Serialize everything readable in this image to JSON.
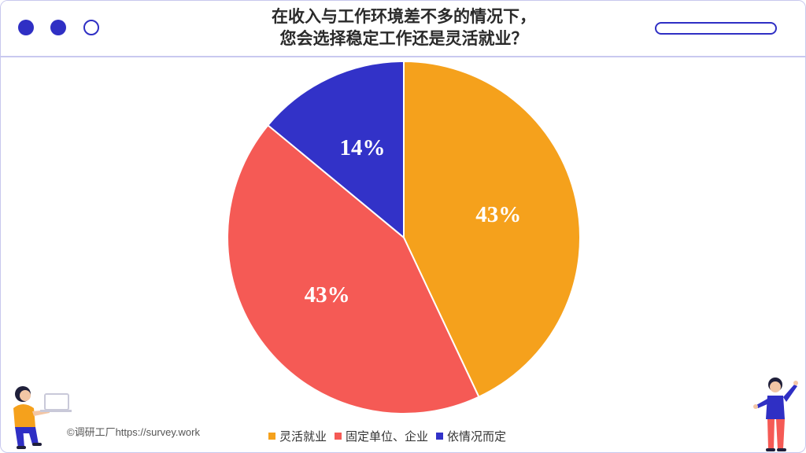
{
  "window": {
    "title_lines": [
      "在收入与工作环境差不多的情况下，",
      "您会选择稳定工作还是灵活就业？"
    ]
  },
  "footer": {
    "credit": "©调研工厂https://survey.work"
  },
  "chart_data": {
    "type": "pie",
    "title": "在收入与工作环境差不多的情况下，您会选择稳定工作还是灵活就业？",
    "start_angle_deg": 0,
    "direction": "clockwise",
    "legend_position": "bottom",
    "slices": [
      {
        "label": "灵活就业",
        "value": 43,
        "display": "43%",
        "color": "#f5a11c"
      },
      {
        "label": "固定单位、企业",
        "value": 43,
        "display": "43%",
        "color": "#f55a55"
      },
      {
        "label": "依情况而定",
        "value": 14,
        "display": "14%",
        "color": "#3232c8"
      }
    ]
  }
}
